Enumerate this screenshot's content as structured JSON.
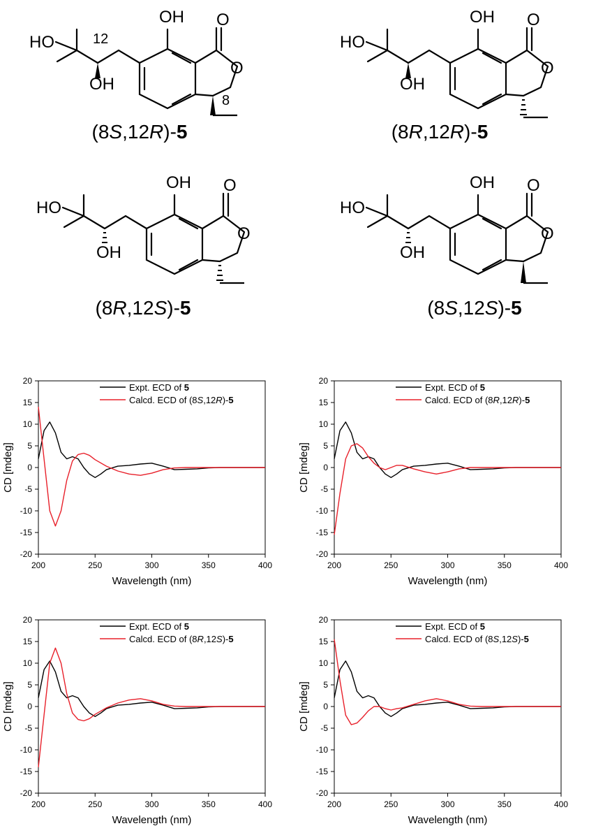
{
  "structures": [
    {
      "pre": "(8",
      "c1": "S",
      "mid": ",12",
      "c2": "R",
      "post": ")-",
      "num": "5",
      "locant_12": "12",
      "locant_8": "8"
    },
    {
      "pre": "(8",
      "c1": "R",
      "mid": ",12",
      "c2": "R",
      "post": ")-",
      "num": "5"
    },
    {
      "pre": "(8",
      "c1": "R",
      "mid": ",12",
      "c2": "S",
      "post": ")-",
      "num": "5"
    },
    {
      "pre": "(8",
      "c1": "S",
      "mid": ",12",
      "c2": "S",
      "post": ")-",
      "num": "5"
    }
  ],
  "atoms": {
    "oh": "OH",
    "ho": "HO",
    "o": "O"
  },
  "chart_data": [
    {
      "type": "line",
      "xlabel": "Wavelength (nm)",
      "ylabel": "CD [mdeg]",
      "xlim": [
        200,
        400
      ],
      "ylim": [
        -20,
        20
      ],
      "xticks": [
        200,
        250,
        300,
        350,
        400
      ],
      "yticks": [
        -20,
        -15,
        -10,
        -5,
        0,
        5,
        10,
        15,
        20
      ],
      "legend_position": "top-right",
      "series": [
        {
          "name": "Expt. ECD of 5",
          "legend": {
            "text": "Expt. ECD of ",
            "bold": "5"
          },
          "color": "#000000",
          "x": [
            200,
            205,
            210,
            215,
            220,
            225,
            230,
            235,
            240,
            245,
            250,
            255,
            260,
            270,
            280,
            290,
            300,
            310,
            320,
            330,
            340,
            350,
            360,
            370,
            380,
            390,
            400
          ],
          "y": [
            2.0,
            8.5,
            10.5,
            8.0,
            3.5,
            2.0,
            2.5,
            2.0,
            0.0,
            -1.5,
            -2.3,
            -1.5,
            -0.5,
            0.3,
            0.5,
            0.8,
            1.0,
            0.3,
            -0.5,
            -0.4,
            -0.3,
            -0.1,
            0.0,
            0.0,
            0.0,
            0.0,
            0.0
          ]
        },
        {
          "name": "Calcd. ECD of (8S,12R)-5",
          "legend": {
            "text": "Calcd. ECD of (8",
            "i1": "S",
            "m": ",12",
            "i2": "R",
            "e": ")-",
            "bold": "5"
          },
          "color": "#e8202a",
          "x": [
            200,
            205,
            210,
            215,
            220,
            225,
            230,
            235,
            240,
            245,
            250,
            260,
            270,
            280,
            290,
            300,
            310,
            320,
            330,
            340,
            350,
            360,
            370,
            380,
            390,
            400
          ],
          "y": [
            14.0,
            2.0,
            -10.0,
            -13.5,
            -10.0,
            -3.0,
            1.5,
            3.0,
            3.3,
            2.8,
            1.8,
            0.3,
            -0.8,
            -1.5,
            -1.8,
            -1.3,
            -0.5,
            -0.1,
            0.0,
            0.0,
            0.0,
            0.0,
            0.0,
            0.0,
            0.0,
            0.0
          ]
        }
      ]
    },
    {
      "type": "line",
      "xlabel": "Wavelength (nm)",
      "ylabel": "CD [mdeg]",
      "xlim": [
        200,
        400
      ],
      "ylim": [
        -20,
        20
      ],
      "xticks": [
        200,
        250,
        300,
        350,
        400
      ],
      "yticks": [
        -20,
        -15,
        -10,
        -5,
        0,
        5,
        10,
        15,
        20
      ],
      "legend_position": "top-right",
      "series": [
        {
          "name": "Expt. ECD of 5",
          "legend": {
            "text": "Expt. ECD of ",
            "bold": "5"
          },
          "color": "#000000",
          "x": [
            200,
            205,
            210,
            215,
            220,
            225,
            230,
            235,
            240,
            245,
            250,
            255,
            260,
            270,
            280,
            290,
            300,
            310,
            320,
            330,
            340,
            350,
            360,
            370,
            380,
            390,
            400
          ],
          "y": [
            2.0,
            8.5,
            10.5,
            8.0,
            3.5,
            2.0,
            2.5,
            2.0,
            0.0,
            -1.5,
            -2.3,
            -1.5,
            -0.5,
            0.3,
            0.5,
            0.8,
            1.0,
            0.3,
            -0.5,
            -0.4,
            -0.3,
            -0.1,
            0.0,
            0.0,
            0.0,
            0.0,
            0.0
          ]
        },
        {
          "name": "Calcd. ECD of (8R,12R)-5",
          "legend": {
            "text": "Calcd. ECD of (8",
            "i1": "R",
            "m": ",12",
            "i2": "R",
            "e": ")-",
            "bold": "5"
          },
          "color": "#e8202a",
          "x": [
            200,
            205,
            210,
            215,
            220,
            225,
            230,
            235,
            240,
            245,
            250,
            255,
            260,
            270,
            280,
            290,
            300,
            310,
            320,
            330,
            340,
            350,
            360,
            370,
            380,
            390,
            400
          ],
          "y": [
            -15.5,
            -6.0,
            2.0,
            5.0,
            5.5,
            4.5,
            2.5,
            1.0,
            0.0,
            -0.5,
            0.0,
            0.5,
            0.5,
            -0.3,
            -1.0,
            -1.5,
            -1.0,
            -0.3,
            0.0,
            0.0,
            0.0,
            0.0,
            0.0,
            0.0,
            0.0,
            0.0,
            0.0
          ]
        }
      ]
    },
    {
      "type": "line",
      "xlabel": "Wavelength (nm)",
      "ylabel": "CD [mdeg]",
      "xlim": [
        200,
        400
      ],
      "ylim": [
        -20,
        20
      ],
      "xticks": [
        200,
        250,
        300,
        350,
        400
      ],
      "yticks": [
        -20,
        -15,
        -10,
        -5,
        0,
        5,
        10,
        15,
        20
      ],
      "legend_position": "top-right",
      "series": [
        {
          "name": "Expt. ECD of 5",
          "legend": {
            "text": "Expt. ECD of ",
            "bold": "5"
          },
          "color": "#000000",
          "x": [
            200,
            205,
            210,
            215,
            220,
            225,
            230,
            235,
            240,
            245,
            250,
            255,
            260,
            270,
            280,
            290,
            300,
            310,
            320,
            330,
            340,
            350,
            360,
            370,
            380,
            390,
            400
          ],
          "y": [
            2.0,
            8.5,
            10.5,
            8.0,
            3.5,
            2.0,
            2.5,
            2.0,
            0.0,
            -1.5,
            -2.3,
            -1.5,
            -0.5,
            0.3,
            0.5,
            0.8,
            1.0,
            0.3,
            -0.5,
            -0.4,
            -0.3,
            -0.1,
            0.0,
            0.0,
            0.0,
            0.0,
            0.0
          ]
        },
        {
          "name": "Calcd. ECD of (8R,12S)-5",
          "legend": {
            "text": "Calcd. ECD of (8",
            "i1": "R",
            "m": ",12",
            "i2": "S",
            "e": ")-",
            "bold": "5"
          },
          "color": "#e8202a",
          "x": [
            200,
            205,
            210,
            215,
            220,
            225,
            230,
            235,
            240,
            245,
            250,
            260,
            270,
            280,
            290,
            300,
            310,
            320,
            330,
            340,
            350,
            360,
            370,
            380,
            390,
            400
          ],
          "y": [
            -14.0,
            -2.0,
            10.0,
            13.5,
            10.0,
            3.0,
            -1.5,
            -3.0,
            -3.3,
            -2.8,
            -1.8,
            -0.3,
            0.8,
            1.5,
            1.8,
            1.3,
            0.5,
            0.1,
            0.0,
            0.0,
            0.0,
            0.0,
            0.0,
            0.0,
            0.0,
            0.0
          ]
        }
      ]
    },
    {
      "type": "line",
      "xlabel": "Wavelength (nm)",
      "ylabel": "CD [mdeg]",
      "xlim": [
        200,
        400
      ],
      "ylim": [
        -20,
        20
      ],
      "xticks": [
        200,
        250,
        300,
        350,
        400
      ],
      "yticks": [
        -20,
        -15,
        -10,
        -5,
        0,
        5,
        10,
        15,
        20
      ],
      "legend_position": "top-right",
      "series": [
        {
          "name": "Expt. ECD of 5",
          "legend": {
            "text": "Expt. ECD of ",
            "bold": "5"
          },
          "color": "#000000",
          "x": [
            200,
            205,
            210,
            215,
            220,
            225,
            230,
            235,
            240,
            245,
            250,
            255,
            260,
            270,
            280,
            290,
            300,
            310,
            320,
            330,
            340,
            350,
            360,
            370,
            380,
            390,
            400
          ],
          "y": [
            2.0,
            8.5,
            10.5,
            8.0,
            3.5,
            2.0,
            2.5,
            2.0,
            0.0,
            -1.5,
            -2.3,
            -1.5,
            -0.5,
            0.3,
            0.5,
            0.8,
            1.0,
            0.3,
            -0.5,
            -0.4,
            -0.3,
            -0.1,
            0.0,
            0.0,
            0.0,
            0.0,
            0.0
          ]
        },
        {
          "name": "Calcd. ECD of (8S,12S)-5",
          "legend": {
            "text": "Calcd. ECD of (8",
            "i1": "S",
            "m": ",12",
            "i2": "S",
            "e": ")-",
            "bold": "5"
          },
          "color": "#e8202a",
          "x": [
            200,
            205,
            210,
            215,
            220,
            225,
            230,
            235,
            240,
            245,
            250,
            255,
            260,
            270,
            280,
            290,
            300,
            310,
            320,
            330,
            340,
            350,
            360,
            370,
            380,
            390,
            400
          ],
          "y": [
            15.5,
            6.0,
            -2.0,
            -4.2,
            -3.8,
            -2.5,
            -1.0,
            0.0,
            0.0,
            -0.5,
            -0.8,
            -0.5,
            -0.3,
            0.5,
            1.3,
            1.8,
            1.3,
            0.5,
            0.1,
            0.0,
            0.0,
            0.0,
            0.0,
            0.0,
            0.0,
            0.0,
            0.0
          ]
        }
      ]
    }
  ]
}
